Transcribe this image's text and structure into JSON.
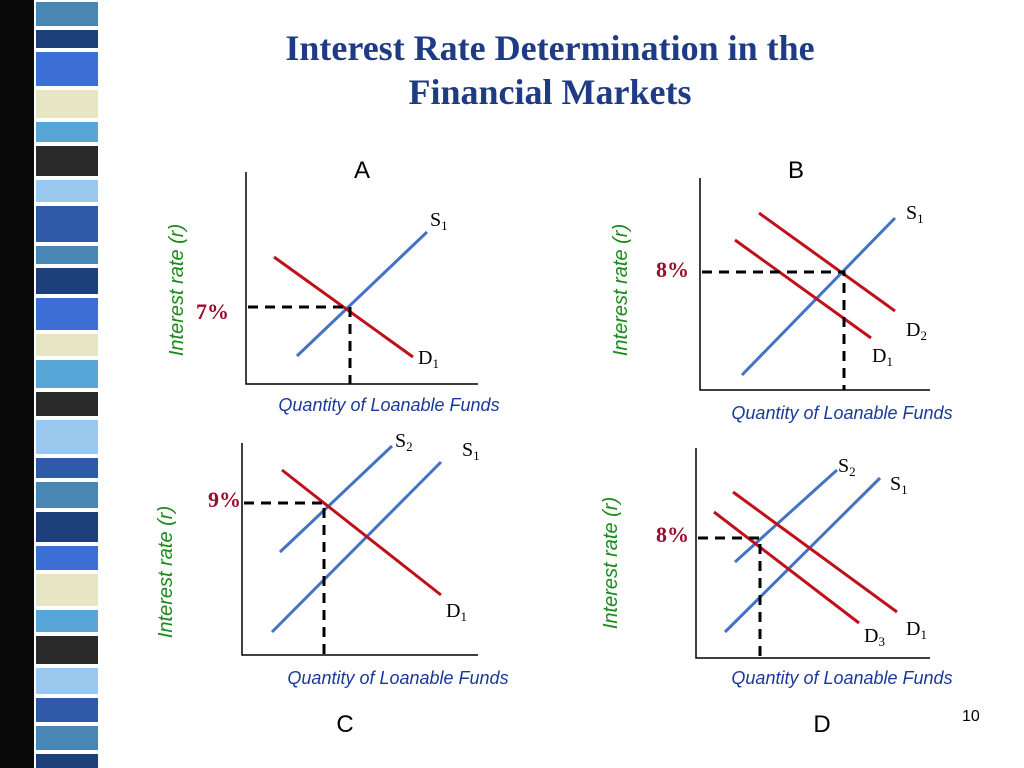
{
  "slide": {
    "title_line1": "Interest Rate Determination in the",
    "title_line2": "Financial Markets",
    "page_number": "10"
  },
  "colors": {
    "title": "#1f3b84",
    "supply": "#4472c4",
    "demand": "#c0101a",
    "axis_label": "#1a8a1a",
    "rate_label": "#9a0a2a",
    "panel_letter": "#000000"
  },
  "panels": {
    "a": {
      "letter": "A",
      "ylabel": "Interest rate (r)",
      "xlabel": "Quantity of Loanable Funds",
      "rate": "7%",
      "s1": "S",
      "s1_sub": "1",
      "d1": "D",
      "d1_sub": "1"
    },
    "b": {
      "letter": "B",
      "ylabel": "Interest rate (r)",
      "xlabel": "Quantity of Loanable Funds",
      "rate": "8%",
      "s1": "S",
      "s1_sub": "1",
      "d2": "D",
      "d2_sub": "2",
      "d1": "D",
      "d1_sub": "1"
    },
    "c": {
      "letter": "C",
      "ylabel": "Interest rate (r)",
      "xlabel": "Quantity of Loanable Funds",
      "rate": "9%",
      "s2": "S",
      "s2_sub": "2",
      "s1": "S",
      "s1_sub": "1",
      "d1": "D",
      "d1_sub": "1"
    },
    "d": {
      "letter": "D",
      "ylabel": "Interest rate (r)",
      "xlabel": "Quantity of Loanable Funds",
      "rate": "8%",
      "s2": "S",
      "s2_sub": "2",
      "s1": "S",
      "s1_sub": "1",
      "d1": "D",
      "d1_sub": "1",
      "d3": "D",
      "d3_sub": "3"
    }
  }
}
